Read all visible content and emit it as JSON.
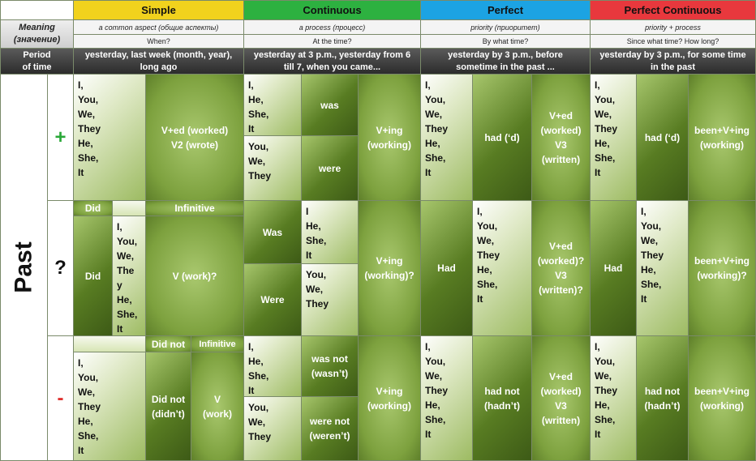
{
  "headers": {
    "simple": "Simple",
    "continuous": "Continuous",
    "perfect": "Perfect",
    "perfect_continuous": "Perfect Continuous",
    "colors": {
      "simple": "#f1d21d",
      "continuous": "#2db140",
      "perfect": "#1ca3e3",
      "perfect_continuous": "#e8383d"
    }
  },
  "meaning": {
    "label": "Meaning\n(значение)",
    "simple": "a common aspect (общие аспекты)",
    "continuous": "a process (процесс)",
    "perfect": "priority (приоритет)",
    "perfect_continuous": "priority + process"
  },
  "question": {
    "simple": "When?",
    "continuous": "At the time?",
    "perfect": "By what time?",
    "perfect_continuous": "Since what time? How long?"
  },
  "period": {
    "label": "Period\nof time",
    "simple": "yesterday, last week (month, year),\nlong ago",
    "continuous": "yesterday at 3 p.m., yesterday from 6\ntill 7, when you came...",
    "perfect": "yesterday by 3 p.m., before\nsometime in the past ...",
    "perfect_continuous": "yesterday by 3 p.m., for some time\nin the past"
  },
  "tense": "Past",
  "signs": {
    "plus": "+",
    "question": "?",
    "minus": "-",
    "plus_color": "#2aa838",
    "minus_color": "#e0312f"
  },
  "pron_all": "I,\nYou,\nWe,\nThey\nHe,\nShe,\nIt",
  "pron_all_q": "I,\nYou,\nWe,\nThe\ny\nHe,\nShe,\nIt",
  "pron_i_he": "I,\nHe,\nShe,\nIt",
  "pron_i_he_q": "I\nHe,\nShe,\nIt",
  "pron_you": "You,\nWe,\nThey",
  "aff": {
    "simple": "V+ed (worked)\nV2 (wrote)",
    "was": "was",
    "were": "were",
    "ving": "V+ing\n(working)",
    "had": "had (‘d)",
    "v3": "V+ed\n(worked)\nV3\n(written)",
    "pc_had": "had (‘d)",
    "been": "been+V+ing\n(working)"
  },
  "ques": {
    "did_top": "Did",
    "infinitive": "Infinitive",
    "did": "Did",
    "vwork": "V (work)?",
    "was": "Was",
    "were": "Were",
    "ving": "V+ing\n(working)?",
    "had": "Had",
    "v3": "V+ed\n(worked)?\nV3\n(written)?",
    "pc_had": "Had",
    "been": "been+V+ing\n(working)?"
  },
  "neg": {
    "didnot_top": "Did not",
    "infinitive": "Infinitive",
    "didnot": "Did not\n(didn’t)",
    "v": "V\n(work)",
    "wasnot": "was not\n(wasn’t)",
    "werenot": "were not\n(weren’t)",
    "ving": "V+ing\n(working)",
    "hadnot": "had not\n(hadn’t)",
    "v3": "V+ed\n(worked)\nV3\n(written)",
    "pc_hadnot": "had not\n(hadn’t)",
    "been": "been+V+ing\n(working)"
  }
}
